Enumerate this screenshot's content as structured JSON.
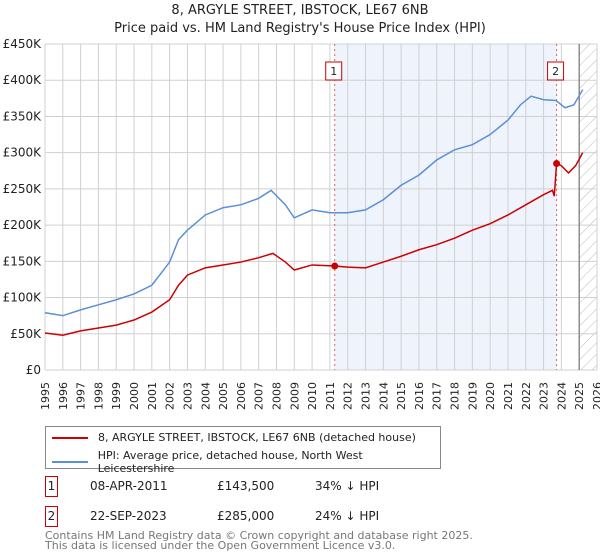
{
  "chart_data": {
    "type": "line",
    "title": "8, ARGYLE STREET, IBSTOCK, LE67 6NB",
    "subtitle": "Price paid vs. HM Land Registry's House Price Index (HPI)",
    "xlim": [
      1995,
      2026
    ],
    "ylim": [
      0,
      450000
    ],
    "x_ticks": [
      "1995",
      "1996",
      "1997",
      "1998",
      "1999",
      "2000",
      "2001",
      "2002",
      "2003",
      "2004",
      "2005",
      "2006",
      "2007",
      "2008",
      "2009",
      "2010",
      "2011",
      "2012",
      "2013",
      "2014",
      "2015",
      "2016",
      "2017",
      "2018",
      "2019",
      "2020",
      "2021",
      "2022",
      "2023",
      "2024",
      "2025",
      "2026"
    ],
    "y_ticks": [
      {
        "v": 0,
        "label": "£0"
      },
      {
        "v": 50000,
        "label": "£50K"
      },
      {
        "v": 100000,
        "label": "£100K"
      },
      {
        "v": 150000,
        "label": "£150K"
      },
      {
        "v": 200000,
        "label": "£200K"
      },
      {
        "v": 250000,
        "label": "£250K"
      },
      {
        "v": 300000,
        "label": "£300K"
      },
      {
        "v": 350000,
        "label": "£350K"
      },
      {
        "v": 400000,
        "label": "£400K"
      },
      {
        "v": 450000,
        "label": "£450K"
      }
    ],
    "grid": true,
    "shaded_range": [
      2011.27,
      2023.73
    ],
    "forecast_hatch_from": 2025.0,
    "series": [
      {
        "name": "8, ARGYLE STREET, IBSTOCK, LE67 6NB (detached house)",
        "color": "#cc0000",
        "x": [
          1995,
          1996,
          1997,
          1998,
          1999,
          2000,
          2001,
          2002,
          2002.5,
          2003,
          2004,
          2005,
          2006,
          2007,
          2007.8,
          2008.5,
          2009,
          2010,
          2011.27,
          2012,
          2013,
          2014,
          2015,
          2016,
          2017,
          2018,
          2019,
          2020,
          2021,
          2022,
          2023,
          2023.5,
          2023.6,
          2023.73,
          2024.0,
          2024.4,
          2024.8,
          2025.2
        ],
        "y": [
          51000,
          48000,
          54000,
          58000,
          62000,
          69000,
          80000,
          97000,
          117000,
          131000,
          141000,
          145000,
          149000,
          155000,
          161000,
          149000,
          138000,
          145000,
          143500,
          142000,
          141000,
          149000,
          157000,
          166000,
          173000,
          182000,
          193000,
          202000,
          214000,
          228000,
          242000,
          248000,
          240000,
          285000,
          282000,
          272000,
          282000,
          300000
        ]
      },
      {
        "name": "HPI: Average price, detached house, North West Leicestershire",
        "color": "#5b8fd6",
        "x": [
          1995,
          1996,
          1997,
          1998,
          1999,
          2000,
          2001,
          2002,
          2002.5,
          2003,
          2004,
          2005,
          2006,
          2007,
          2007.7,
          2008.5,
          2009,
          2010,
          2011,
          2012,
          2013,
          2014,
          2015,
          2016,
          2017,
          2018,
          2019,
          2020,
          2021,
          2021.7,
          2022.3,
          2023,
          2023.7,
          2024.2,
          2024.7,
          2025.2
        ],
        "y": [
          79000,
          75000,
          83000,
          90000,
          97000,
          105000,
          117000,
          149000,
          180000,
          193000,
          214000,
          224000,
          228000,
          237000,
          248000,
          228000,
          210000,
          221000,
          217000,
          217000,
          221000,
          235000,
          255000,
          269000,
          290000,
          304000,
          311000,
          325000,
          345000,
          366000,
          378000,
          373000,
          372000,
          362000,
          366000,
          387000
        ]
      }
    ],
    "markers": [
      {
        "label": "1",
        "x": 2011.27,
        "y": 143500
      },
      {
        "label": "2",
        "x": 2023.73,
        "y": 285000
      }
    ]
  },
  "legend": {
    "items": [
      "8, ARGYLE STREET, IBSTOCK, LE67 6NB (detached house)",
      "HPI: Average price, detached house, North West Leicestershire"
    ]
  },
  "table": [
    {
      "num": "1",
      "date": "08-APR-2011",
      "price": "£143,500",
      "hpi": "34% ↓ HPI"
    },
    {
      "num": "2",
      "date": "22-SEP-2023",
      "price": "£285,000",
      "hpi": "24% ↓ HPI"
    }
  ],
  "footer": {
    "line1": "Contains HM Land Registry data © Crown copyright and database right 2025.",
    "line2": "This data is licensed under the Open Government Licence v3.0."
  }
}
